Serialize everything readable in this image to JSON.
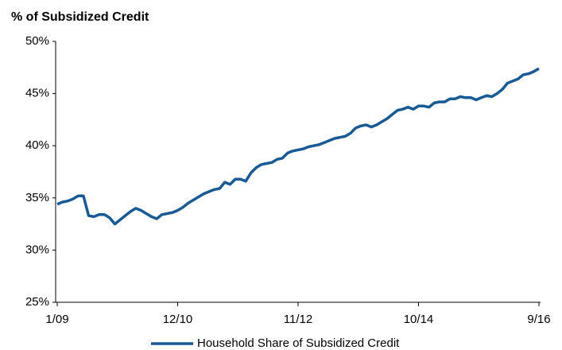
{
  "chart_data": {
    "type": "line",
    "title": "% of Subsidized Credit",
    "categories": [
      "1/09",
      null,
      null,
      null,
      null,
      null,
      null,
      null,
      null,
      null,
      null,
      null,
      null,
      null,
      null,
      null,
      null,
      null,
      null,
      null,
      null,
      null,
      null,
      "12/10",
      null,
      null,
      null,
      null,
      null,
      null,
      null,
      null,
      null,
      null,
      null,
      null,
      null,
      null,
      null,
      null,
      null,
      null,
      null,
      null,
      null,
      null,
      "11/12",
      null,
      null,
      null,
      null,
      null,
      null,
      null,
      null,
      null,
      null,
      null,
      null,
      null,
      null,
      null,
      null,
      null,
      null,
      null,
      null,
      null,
      null,
      "10/14",
      null,
      null,
      null,
      null,
      null,
      null,
      null,
      null,
      null,
      null,
      null,
      null,
      null,
      null,
      null,
      null,
      null,
      null,
      null,
      null,
      null,
      null,
      "9/16"
    ],
    "series": [
      {
        "name": "Household Share of Subsidized Credit",
        "color": "#175a96",
        "values": [
          34.4,
          34.6,
          34.7,
          34.9,
          35.2,
          35.2,
          33.3,
          33.2,
          33.4,
          33.4,
          33.1,
          32.5,
          32.9,
          33.3,
          33.7,
          34.0,
          33.8,
          33.5,
          33.2,
          33.0,
          33.4,
          33.5,
          33.6,
          33.8,
          34.1,
          34.5,
          34.8,
          35.1,
          35.4,
          35.6,
          35.8,
          35.9,
          36.5,
          36.3,
          36.8,
          36.8,
          36.6,
          37.4,
          37.9,
          38.2,
          38.3,
          38.4,
          38.7,
          38.8,
          39.3,
          39.5,
          39.6,
          39.7,
          39.9,
          40.0,
          40.1,
          40.3,
          40.5,
          40.7,
          40.8,
          40.9,
          41.2,
          41.7,
          41.9,
          42.0,
          41.8,
          42.0,
          42.3,
          42.6,
          43.0,
          43.4,
          43.5,
          43.7,
          43.5,
          43.8,
          43.8,
          43.7,
          44.1,
          44.2,
          44.2,
          44.5,
          44.5,
          44.7,
          44.6,
          44.6,
          44.4,
          44.6,
          44.8,
          44.7,
          45.0,
          45.4,
          46.0,
          46.2,
          46.4,
          46.8,
          46.9,
          47.1,
          47.4
        ]
      }
    ],
    "ylim": [
      25,
      50
    ],
    "yticks": [
      {
        "value": 25,
        "label": "25%"
      },
      {
        "value": 30,
        "label": "30%"
      },
      {
        "value": 35,
        "label": "35%"
      },
      {
        "value": 40,
        "label": "40%"
      },
      {
        "value": 45,
        "label": "45%"
      },
      {
        "value": 50,
        "label": "50%"
      }
    ]
  }
}
